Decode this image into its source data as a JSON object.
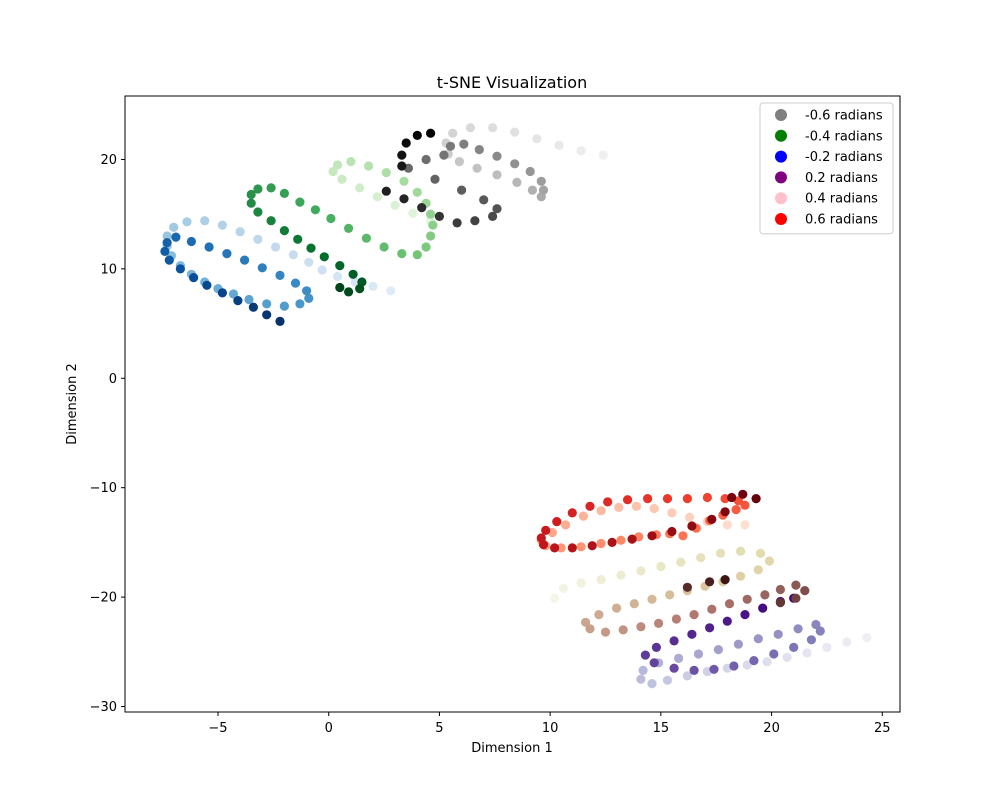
{
  "chart_data": {
    "type": "scatter",
    "title": "t-SNE Visualization",
    "xlabel": "Dimension 1",
    "ylabel": "Dimension 2",
    "xlim": [
      -9.2,
      25.8
    ],
    "ylim": [
      -30.5,
      25.8
    ],
    "xticks": [
      -5,
      0,
      5,
      10,
      15,
      20,
      25
    ],
    "yticks": [
      -30,
      -20,
      -10,
      0,
      10,
      20
    ],
    "grid": false,
    "legend_position": "top-right",
    "legend": [
      {
        "label": "-0.6 radians",
        "color": "#808080"
      },
      {
        "label": "-0.4 radians",
        "color": "#008000"
      },
      {
        "label": "-0.2 radians",
        "color": "#0000ff"
      },
      {
        "label": "0.2 radians",
        "color": "#800080"
      },
      {
        "label": "0.4 radians",
        "color": "#ffc0cb"
      },
      {
        "label": "0.6 radians",
        "color": "#ff0000"
      }
    ],
    "series": [
      {
        "colormap": "Blues",
        "points": [
          [
            2.8,
            8.0
          ],
          [
            2.0,
            8.4
          ],
          [
            1.2,
            8.8
          ],
          [
            0.4,
            9.3
          ],
          [
            -0.3,
            9.9
          ],
          [
            -0.9,
            10.6
          ],
          [
            -1.6,
            11.3
          ],
          [
            -2.4,
            12.0
          ],
          [
            -3.2,
            12.7
          ],
          [
            -4.0,
            13.4
          ],
          [
            -4.8,
            14.0
          ],
          [
            -5.6,
            14.4
          ],
          [
            -6.4,
            14.3
          ],
          [
            -7.0,
            13.8
          ],
          [
            -7.3,
            13.0
          ],
          [
            -7.3,
            12.1
          ],
          [
            -7.1,
            11.2
          ],
          [
            -6.7,
            10.3
          ],
          [
            -6.2,
            9.5
          ],
          [
            -5.6,
            8.8
          ],
          [
            -5.0,
            8.2
          ],
          [
            -4.3,
            7.7
          ],
          [
            -3.6,
            7.2
          ],
          [
            -2.8,
            6.8
          ],
          [
            -2.0,
            6.6
          ],
          [
            -1.3,
            6.8
          ],
          [
            -0.9,
            7.3
          ],
          [
            -1.0,
            8.0
          ],
          [
            -1.5,
            8.7
          ],
          [
            -2.2,
            9.4
          ],
          [
            -3.0,
            10.1
          ],
          [
            -3.8,
            10.8
          ],
          [
            -4.6,
            11.4
          ],
          [
            -5.4,
            12.0
          ],
          [
            -6.2,
            12.5
          ],
          [
            -6.9,
            12.9
          ],
          [
            -7.3,
            12.4
          ],
          [
            -7.4,
            11.6
          ],
          [
            -7.2,
            10.8
          ],
          [
            -6.7,
            10.0
          ],
          [
            -6.1,
            9.2
          ],
          [
            -5.5,
            8.5
          ],
          [
            -4.8,
            7.8
          ],
          [
            -4.1,
            7.1
          ],
          [
            -3.4,
            6.5
          ],
          [
            -2.8,
            5.8
          ],
          [
            -2.2,
            5.2
          ]
        ]
      },
      {
        "colormap": "Greens",
        "points": [
          [
            4.6,
            14.4
          ],
          [
            3.8,
            15.1
          ],
          [
            3.0,
            15.8
          ],
          [
            2.2,
            16.6
          ],
          [
            1.4,
            17.4
          ],
          [
            0.6,
            18.2
          ],
          [
            0.2,
            18.9
          ],
          [
            0.4,
            19.5
          ],
          [
            1.0,
            19.8
          ],
          [
            1.8,
            19.4
          ],
          [
            2.6,
            18.8
          ],
          [
            3.4,
            18.0
          ],
          [
            4.0,
            17.0
          ],
          [
            4.4,
            16.0
          ],
          [
            4.6,
            15.0
          ],
          [
            4.7,
            14.0
          ],
          [
            4.6,
            13.0
          ],
          [
            4.4,
            12.0
          ],
          [
            4.0,
            11.3
          ],
          [
            3.3,
            11.4
          ],
          [
            2.5,
            12.0
          ],
          [
            1.7,
            12.8
          ],
          [
            0.9,
            13.7
          ],
          [
            0.1,
            14.6
          ],
          [
            -0.6,
            15.4
          ],
          [
            -1.3,
            16.1
          ],
          [
            -2.0,
            16.9
          ],
          [
            -2.6,
            17.4
          ],
          [
            -3.2,
            17.3
          ],
          [
            -3.5,
            16.8
          ],
          [
            -3.5,
            16.0
          ],
          [
            -3.2,
            15.2
          ],
          [
            -2.6,
            14.4
          ],
          [
            -2.0,
            13.5
          ],
          [
            -1.4,
            12.7
          ],
          [
            -0.8,
            11.9
          ],
          [
            -0.2,
            11.1
          ],
          [
            0.5,
            10.3
          ],
          [
            1.1,
            9.5
          ],
          [
            1.5,
            8.8
          ],
          [
            1.4,
            8.2
          ],
          [
            0.9,
            7.9
          ],
          [
            0.5,
            8.3
          ]
        ]
      },
      {
        "colormap": "Greys",
        "points": [
          [
            12.4,
            20.4
          ],
          [
            11.4,
            20.8
          ],
          [
            10.4,
            21.3
          ],
          [
            9.4,
            21.9
          ],
          [
            8.4,
            22.5
          ],
          [
            7.4,
            22.9
          ],
          [
            6.4,
            22.9
          ],
          [
            5.6,
            22.4
          ],
          [
            5.3,
            21.5
          ],
          [
            5.4,
            20.5
          ],
          [
            5.9,
            19.8
          ],
          [
            6.7,
            19.2
          ],
          [
            7.6,
            18.6
          ],
          [
            8.5,
            17.9
          ],
          [
            9.2,
            17.2
          ],
          [
            9.6,
            16.6
          ],
          [
            9.7,
            17.2
          ],
          [
            9.6,
            18.0
          ],
          [
            9.1,
            18.9
          ],
          [
            8.4,
            19.6
          ],
          [
            7.6,
            20.3
          ],
          [
            6.8,
            20.9
          ],
          [
            6.1,
            21.4
          ],
          [
            5.5,
            21.2
          ],
          [
            5.2,
            20.4
          ],
          [
            4.4,
            20.0
          ],
          [
            3.6,
            19.2
          ],
          [
            4.8,
            18.2
          ],
          [
            6.0,
            17.2
          ],
          [
            7.0,
            16.3
          ],
          [
            7.6,
            15.5
          ],
          [
            7.4,
            14.8
          ],
          [
            6.6,
            14.4
          ],
          [
            5.8,
            14.2
          ],
          [
            5.0,
            14.8
          ],
          [
            4.2,
            15.6
          ],
          [
            3.4,
            16.4
          ],
          [
            2.6,
            17.1
          ],
          [
            3.3,
            19.4
          ],
          [
            3.3,
            20.4
          ],
          [
            3.5,
            21.5
          ],
          [
            4.0,
            22.2
          ],
          [
            4.6,
            22.4
          ]
        ]
      },
      {
        "colormap": "Reds",
        "points": [
          [
            18.8,
            -13.4
          ],
          [
            18.0,
            -13.4
          ],
          [
            17.1,
            -13.1
          ],
          [
            16.3,
            -12.7
          ],
          [
            15.5,
            -12.3
          ],
          [
            14.7,
            -11.9
          ],
          [
            13.9,
            -11.7
          ],
          [
            13.1,
            -11.8
          ],
          [
            12.3,
            -12.1
          ],
          [
            11.5,
            -12.6
          ],
          [
            10.7,
            -13.4
          ],
          [
            10.1,
            -14.1
          ],
          [
            9.6,
            -14.8
          ],
          [
            9.8,
            -15.3
          ],
          [
            10.5,
            -15.5
          ],
          [
            11.4,
            -15.4
          ],
          [
            12.3,
            -15.1
          ],
          [
            13.2,
            -14.8
          ],
          [
            14.0,
            -14.5
          ],
          [
            14.8,
            -14.3
          ],
          [
            15.4,
            -14.2
          ],
          [
            16.0,
            -14.4
          ],
          [
            16.6,
            -13.7
          ],
          [
            17.2,
            -13.0
          ],
          [
            17.8,
            -12.5
          ],
          [
            18.4,
            -12.0
          ],
          [
            18.8,
            -11.6
          ],
          [
            18.5,
            -11.2
          ],
          [
            17.9,
            -11.0
          ],
          [
            17.1,
            -10.9
          ],
          [
            16.2,
            -11.0
          ],
          [
            15.3,
            -11.0
          ],
          [
            14.4,
            -11.0
          ],
          [
            13.5,
            -11.1
          ],
          [
            12.6,
            -11.3
          ],
          [
            11.8,
            -11.7
          ],
          [
            11.0,
            -12.3
          ],
          [
            10.3,
            -13.1
          ],
          [
            9.8,
            -13.9
          ],
          [
            9.6,
            -14.6
          ],
          [
            9.7,
            -15.2
          ],
          [
            10.2,
            -15.5
          ],
          [
            11.0,
            -15.5
          ],
          [
            11.9,
            -15.3
          ],
          [
            12.8,
            -15.0
          ],
          [
            13.7,
            -14.7
          ],
          [
            14.6,
            -14.4
          ],
          [
            15.5,
            -14.0
          ],
          [
            16.4,
            -13.5
          ],
          [
            17.3,
            -12.9
          ],
          [
            17.9,
            -12.2
          ],
          [
            18.2,
            -10.9
          ],
          [
            18.7,
            -10.6
          ],
          [
            19.3,
            -11.0
          ]
        ]
      },
      {
        "colormap": "Purples",
        "points": [
          [
            24.3,
            -23.7
          ],
          [
            23.4,
            -24.1
          ],
          [
            22.5,
            -24.6
          ],
          [
            21.6,
            -25.1
          ],
          [
            20.7,
            -25.5
          ],
          [
            19.8,
            -25.9
          ],
          [
            18.9,
            -26.2
          ],
          [
            18.0,
            -26.5
          ],
          [
            17.1,
            -26.8
          ],
          [
            16.2,
            -27.2
          ],
          [
            15.3,
            -27.6
          ],
          [
            14.6,
            -27.9
          ],
          [
            14.1,
            -27.5
          ],
          [
            14.2,
            -26.7
          ],
          [
            14.9,
            -26.0
          ],
          [
            15.8,
            -25.6
          ],
          [
            16.7,
            -25.2
          ],
          [
            17.6,
            -24.8
          ],
          [
            18.5,
            -24.3
          ],
          [
            19.4,
            -23.8
          ],
          [
            20.3,
            -23.4
          ],
          [
            21.2,
            -22.9
          ],
          [
            22.0,
            -22.5
          ],
          [
            22.2,
            -23.1
          ],
          [
            21.8,
            -23.9
          ],
          [
            21.0,
            -24.6
          ],
          [
            20.1,
            -25.2
          ],
          [
            19.2,
            -25.8
          ],
          [
            18.3,
            -26.3
          ],
          [
            17.4,
            -26.6
          ],
          [
            16.5,
            -26.7
          ],
          [
            15.6,
            -26.5
          ],
          [
            14.7,
            -26.0
          ],
          [
            14.3,
            -25.3
          ],
          [
            14.8,
            -24.6
          ],
          [
            15.6,
            -24.0
          ],
          [
            16.4,
            -23.4
          ],
          [
            17.2,
            -22.8
          ],
          [
            18.0,
            -22.2
          ],
          [
            18.8,
            -21.6
          ],
          [
            19.6,
            -21.0
          ],
          [
            20.4,
            -20.4
          ],
          [
            21.0,
            -20.1
          ]
        ]
      },
      {
        "colormap": "pink",
        "points": [
          [
            10.2,
            -20.1
          ],
          [
            10.6,
            -19.2
          ],
          [
            11.4,
            -18.7
          ],
          [
            12.3,
            -18.4
          ],
          [
            13.2,
            -18.0
          ],
          [
            14.1,
            -17.6
          ],
          [
            15.0,
            -17.2
          ],
          [
            15.9,
            -16.8
          ],
          [
            16.8,
            -16.4
          ],
          [
            17.7,
            -16.0
          ],
          [
            18.6,
            -15.8
          ],
          [
            19.5,
            -16.0
          ],
          [
            19.9,
            -16.7
          ],
          [
            19.4,
            -17.5
          ],
          [
            18.6,
            -18.1
          ],
          [
            17.8,
            -18.6
          ],
          [
            17.0,
            -19.0
          ],
          [
            16.2,
            -19.4
          ],
          [
            15.4,
            -19.8
          ],
          [
            14.6,
            -20.2
          ],
          [
            13.8,
            -20.6
          ],
          [
            13.0,
            -21.0
          ],
          [
            12.2,
            -21.6
          ],
          [
            11.6,
            -22.3
          ],
          [
            11.8,
            -22.9
          ],
          [
            12.5,
            -23.2
          ],
          [
            13.3,
            -23.0
          ],
          [
            14.1,
            -22.7
          ],
          [
            14.9,
            -22.4
          ],
          [
            15.7,
            -22.0
          ],
          [
            16.5,
            -21.6
          ],
          [
            17.3,
            -21.1
          ],
          [
            18.1,
            -20.6
          ],
          [
            18.9,
            -20.2
          ],
          [
            19.7,
            -19.8
          ],
          [
            20.4,
            -19.3
          ],
          [
            21.1,
            -18.9
          ],
          [
            21.5,
            -19.4
          ],
          [
            21.1,
            -20.1
          ],
          [
            20.4,
            -20.5
          ],
          [
            16.2,
            -19.1
          ],
          [
            17.2,
            -18.6
          ],
          [
            17.9,
            -18.4
          ]
        ]
      }
    ]
  }
}
